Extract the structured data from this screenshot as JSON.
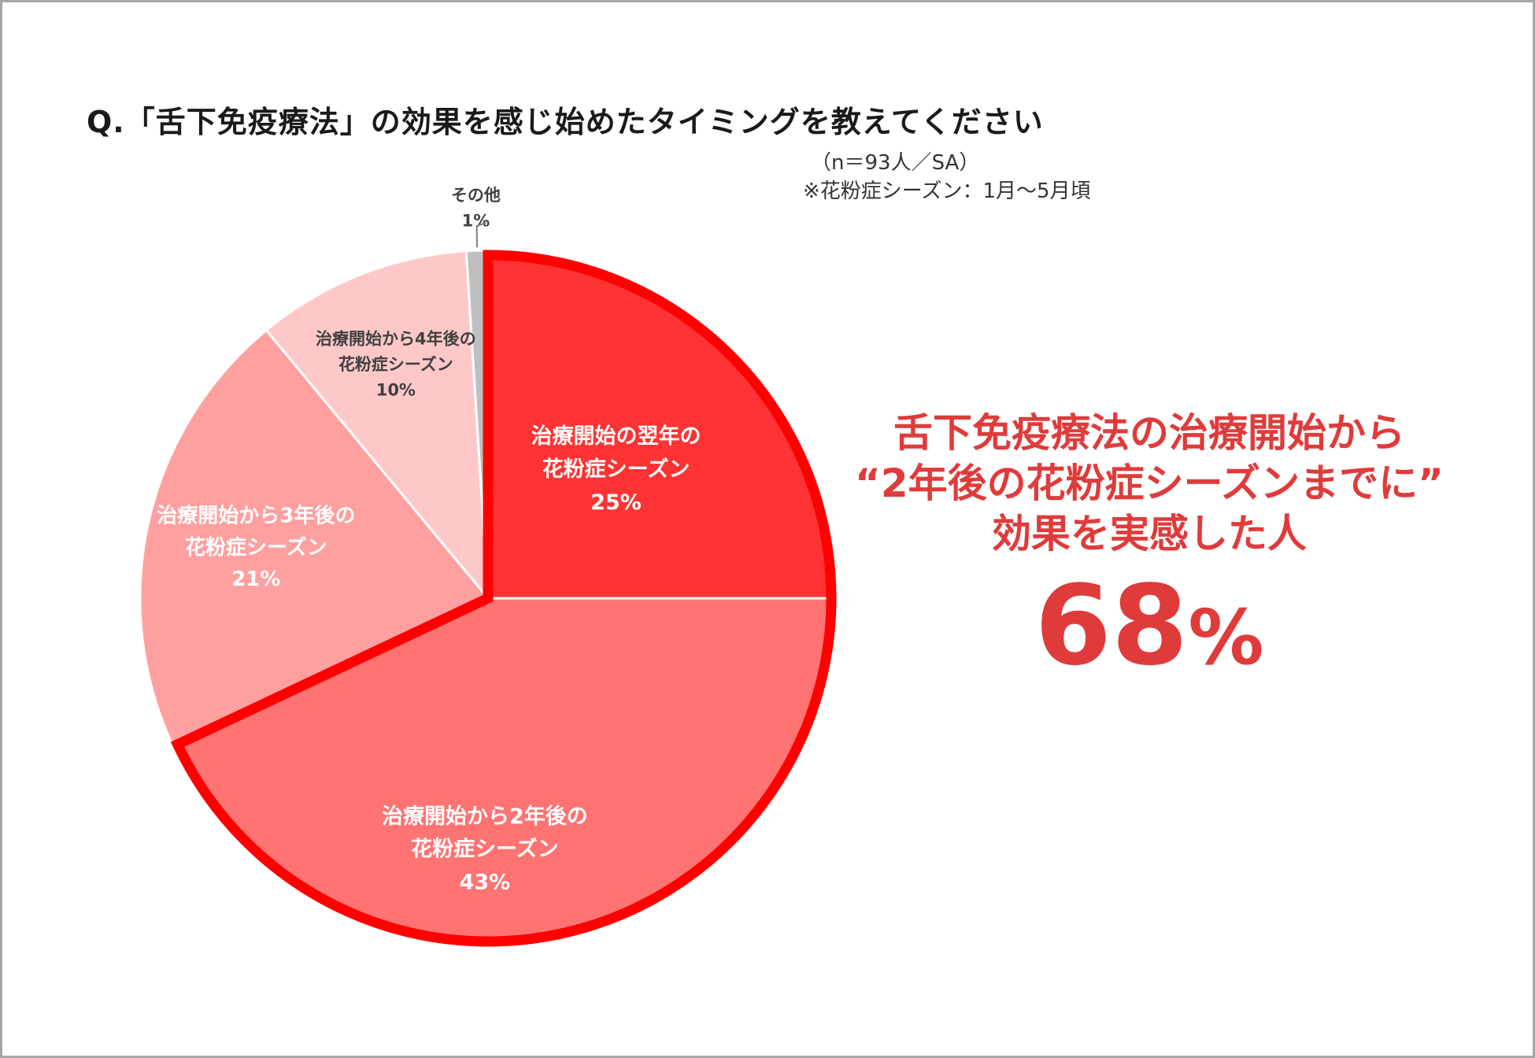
{
  "title": "Q.「舌下免疫療法」の効果を感じ始めたタイミングを教えてください",
  "notes": {
    "sample": "（n＝93人／SA）",
    "season": "※花粉症シーズン：1月〜5月頃"
  },
  "chart_data": {
    "type": "pie",
    "unit": "%",
    "slices": [
      {
        "label_line1": "治療開始の翌年の",
        "label_line2": "花粉症シーズン",
        "value": 25,
        "value_label": "25%",
        "color": "#ff3333"
      },
      {
        "label_line1": "治療開始から2年後の",
        "label_line2": "花粉症シーズン",
        "value": 43,
        "value_label": "43%",
        "color": "#ff7373"
      },
      {
        "label_line1": "治療開始から3年後の",
        "label_line2": "花粉症シーズン",
        "value": 21,
        "value_label": "21%",
        "color": "#ffa0a0"
      },
      {
        "label_line1": "治療開始から4年後の",
        "label_line2": "花粉症シーズン",
        "value": 10,
        "value_label": "10%",
        "color": "#ffc8c8"
      },
      {
        "label_line1": "その他",
        "label_line2": "",
        "value": 1,
        "value_label": "1%",
        "color": "#bfbfbf"
      }
    ],
    "highlight": {
      "slices": [
        0,
        1
      ],
      "outline_color": "#ff0000"
    }
  },
  "callout": {
    "line1": "舌下免疫療法の治療開始から",
    "line2": "“2年後の花粉症シーズンまでに”",
    "line3": "効果を実感した人",
    "number": "68",
    "unit": "%",
    "color": "#e03b3b"
  }
}
